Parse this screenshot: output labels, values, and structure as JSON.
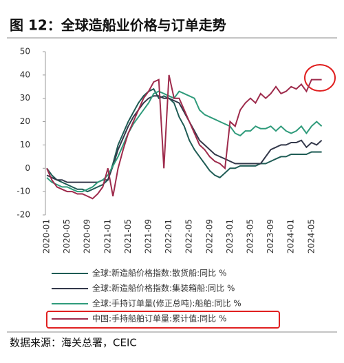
{
  "chart_data": {
    "type": "line",
    "title": "图 12：全球造船业价格与订单走势",
    "source": "数据来源：海关总署，CEIC",
    "categories": [
      "2020-01",
      null,
      null,
      null,
      "2020-05",
      null,
      null,
      null,
      "2020-09",
      null,
      null,
      null,
      "2021-01",
      null,
      null,
      null,
      "2021-05",
      null,
      null,
      null,
      "2021-09",
      null,
      null,
      null,
      "2022-01",
      null,
      null,
      null,
      "2022-05",
      null,
      null,
      null,
      "2022-09",
      null,
      null,
      null,
      "2023-01",
      null,
      null,
      null,
      "2023-05",
      null,
      null,
      null,
      "2023-09",
      null,
      null,
      null,
      "2024-01",
      null,
      null,
      null,
      "2024-05",
      null,
      null
    ],
    "ylim": [
      -20,
      50
    ],
    "yticks": [
      -20,
      -10,
      0,
      10,
      20,
      30,
      40,
      50
    ],
    "series": [
      {
        "name": "全球:新造船价格指数:散货船:同比 %",
        "color": "#1f5c55",
        "values": [
          0,
          -3,
          -5,
          -6,
          -7,
          -8,
          -9,
          -9,
          -10,
          -9,
          -8,
          -7,
          -5,
          2,
          10,
          15,
          20,
          24,
          28,
          31,
          33,
          34,
          30,
          31,
          30,
          28,
          22,
          18,
          12,
          8,
          5,
          2,
          -1,
          -3,
          -4,
          -2,
          0,
          0,
          1,
          1,
          1,
          1,
          2,
          2,
          3,
          4,
          5,
          5,
          6,
          6,
          6,
          6,
          7,
          7,
          7
        ]
      },
      {
        "name": "全球:新造船价格指数:集装箱船:同比 %",
        "color": "#33384a",
        "values": [
          -3,
          -4,
          -5,
          -5,
          -6,
          -6,
          -6,
          -6,
          -6,
          -6,
          -6,
          -5,
          -5,
          1,
          8,
          13,
          18,
          22,
          25,
          28,
          30,
          31,
          31,
          30,
          30,
          29,
          28,
          24,
          20,
          16,
          12,
          10,
          8,
          6,
          5,
          4,
          3,
          2,
          2,
          2,
          2,
          2,
          2,
          5,
          8,
          9,
          10,
          10,
          11,
          11,
          12,
          9,
          11,
          10,
          12
        ]
      },
      {
        "name": "全球:手持订单量(修正总吨):船舶:同比 %",
        "color": "#2f9b7b",
        "values": [
          -4,
          -6,
          -7,
          -8,
          -8,
          -9,
          -10,
          -10,
          -9,
          -8,
          -6,
          -5,
          -3,
          1,
          5,
          10,
          15,
          19,
          22,
          25,
          28,
          32,
          33,
          32,
          31,
          30,
          33,
          32,
          31,
          30,
          25,
          23,
          22,
          21,
          20,
          19,
          18,
          15,
          14,
          16,
          16,
          18,
          17,
          17,
          18,
          16,
          18,
          16,
          15,
          16,
          18,
          15,
          18,
          20,
          18
        ]
      },
      {
        "name": "中国:手持船舶订单量:累计值:同比 %",
        "color": "#9e2b4c",
        "values": [
          0,
          -5,
          -8,
          -9,
          -10,
          -10,
          -11,
          -11,
          -12,
          -13,
          -11,
          -8,
          0,
          -12,
          0,
          8,
          15,
          20,
          25,
          30,
          33,
          37,
          38,
          0,
          40,
          30,
          30,
          25,
          20,
          15,
          10,
          8,
          5,
          3,
          2,
          0,
          20,
          18,
          25,
          28,
          30,
          28,
          32,
          30,
          32,
          35,
          32,
          33,
          35,
          34,
          36,
          33,
          38,
          38,
          38
        ]
      }
    ]
  }
}
